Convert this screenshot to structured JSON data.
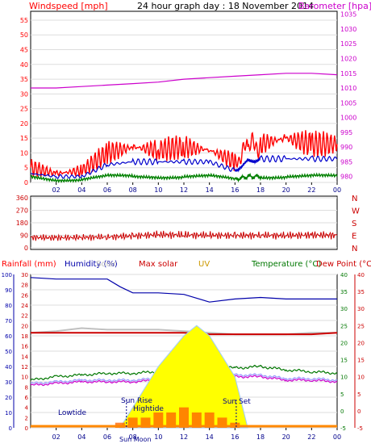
{
  "colors": {
    "wind": "#ff0000",
    "wind_avg": "#0000cc",
    "wind_low": "#008000",
    "baro": "#cc00cc",
    "direction": "#cc0000",
    "humidity": "#0000aa",
    "rain": "#ff0000",
    "solar": "#c0c0c0",
    "max_solar": "#cc0000",
    "uv": "#cc9900",
    "temperature": "#007700",
    "dewpoint": "#cc0000",
    "sun_fill": "#ffff00",
    "frame": "#000000",
    "grid": "#dddddd"
  },
  "titles": {
    "windspeed": "Windspeed [mph]",
    "graph_day": "24 hour graph day : 18 November 2014",
    "barometer": "Barometer [hpa]",
    "rainfall": "Rainfall (mm)",
    "humidity": "Humidity (%)",
    "solar": "Solar",
    "max_solar": "Max solar",
    "uv": "UV",
    "temperature": "Temperature (°C)",
    "dewpoint": "Dew Point (°C)"
  },
  "annotations": {
    "lowtide": "Lowtide",
    "sunrise": "Sun Rise",
    "hightide": "Hightide",
    "sunset": "Sun Set",
    "bottom_ticks_extra": "Sun Moon"
  },
  "chart_data": [
    {
      "type": "line",
      "x_ticks": [
        "02",
        "04",
        "06",
        "08",
        "10",
        "12",
        "14",
        "16",
        "18",
        "20",
        "22",
        "00"
      ],
      "y_left_ticks": [
        0,
        5,
        10,
        15,
        20,
        25,
        30,
        35,
        40,
        45,
        50,
        55
      ],
      "y_right_ticks": [
        980,
        985,
        990,
        995,
        1000,
        1005,
        1010,
        1015,
        1020,
        1025,
        1030,
        1035
      ],
      "ylim_left": [
        0,
        58
      ],
      "ylim_right": [
        978,
        1036
      ],
      "series": [
        {
          "key": "wind",
          "x": [
            0,
            2,
            4,
            6,
            8,
            10,
            12,
            14,
            16,
            17,
            18,
            20,
            22,
            24
          ],
          "values": [
            5,
            3,
            4,
            10,
            12,
            11,
            12,
            11,
            7,
            12,
            13,
            15,
            13,
            13
          ]
        },
        {
          "key": "wind_avg",
          "x": [
            0,
            2,
            4,
            6,
            8,
            10,
            12,
            14,
            16,
            17,
            18,
            20,
            22,
            24
          ],
          "values": [
            3,
            2,
            2,
            6,
            7,
            7,
            7,
            7,
            4,
            7,
            8,
            8,
            8,
            8
          ]
        },
        {
          "key": "wind_low",
          "x": [
            0,
            2,
            4,
            6,
            8,
            10,
            12,
            14,
            16,
            17,
            18,
            20,
            22,
            24
          ],
          "values": [
            2,
            1,
            1,
            2,
            2,
            2,
            2,
            2,
            1,
            2,
            2,
            2,
            2,
            2
          ]
        },
        {
          "key": "baro",
          "x": [
            0,
            2,
            4,
            6,
            8,
            10,
            12,
            14,
            16,
            18,
            20,
            22,
            24
          ],
          "values": [
            1010,
            1010,
            1010.5,
            1011,
            1011.5,
            1012,
            1013,
            1013.5,
            1014,
            1014.5,
            1015,
            1015,
            1014.5
          ]
        }
      ]
    },
    {
      "type": "line",
      "x_ticks": [
        "02",
        "04",
        "06",
        "08",
        "10",
        "12",
        "14",
        "16",
        "18",
        "20",
        "22",
        "00"
      ],
      "y_left_ticks": [
        0,
        90,
        180,
        270,
        360
      ],
      "y_right_ticks": [
        "N",
        "W",
        "S",
        "E",
        "N"
      ],
      "ylim": [
        0,
        380
      ],
      "series": [
        {
          "key": "direction",
          "x": [
            0,
            2,
            4,
            6,
            8,
            10,
            12,
            14,
            16,
            18,
            20,
            22,
            24
          ],
          "values": [
            75,
            72,
            75,
            78,
            85,
            95,
            92,
            90,
            88,
            90,
            88,
            92,
            90
          ]
        }
      ]
    },
    {
      "type": "line",
      "x_ticks": [
        "02",
        "04",
        "06",
        "08",
        "10",
        "12",
        "14",
        "16",
        "18",
        "20",
        "22",
        "00"
      ],
      "y_far_left_ticks": [
        0,
        10,
        20,
        30,
        40,
        50,
        60,
        70,
        80,
        90,
        100
      ],
      "y_left_ticks": [
        0,
        2,
        4,
        6,
        8,
        10,
        12,
        14,
        16,
        18,
        20,
        22,
        24,
        26,
        28,
        30
      ],
      "y_right_ticks": [
        -5,
        0,
        5,
        10,
        15,
        20,
        25,
        30,
        35,
        40
      ],
      "y_far_right_ticks": [
        -5,
        0,
        5,
        10,
        15,
        20,
        25,
        30,
        35,
        40
      ],
      "series": [
        {
          "key": "humidity",
          "x": [
            0,
            2,
            4,
            6,
            7,
            8,
            10,
            12,
            14,
            16,
            18,
            20,
            22,
            24
          ],
          "values": [
            98,
            97,
            97,
            97,
            92,
            88,
            88,
            87,
            82,
            84,
            85,
            84,
            84,
            84
          ]
        },
        {
          "key": "solar",
          "x": [
            0,
            2,
            4,
            6,
            8,
            10,
            12,
            14,
            16,
            18,
            20,
            22,
            24
          ],
          "values": [
            62,
            63,
            65,
            64,
            64,
            64,
            63,
            62,
            61,
            61,
            61,
            62,
            62
          ]
        },
        {
          "key": "max_solar",
          "x": [
            0,
            2,
            4,
            6,
            8,
            10,
            12,
            14,
            16,
            18,
            20,
            22,
            24
          ],
          "values": [
            62,
            62,
            62,
            62,
            62,
            62,
            62,
            61,
            61,
            61,
            61,
            61,
            62
          ]
        },
        {
          "key": "temperature",
          "x": [
            0,
            2,
            4,
            6,
            8,
            10,
            12,
            14,
            16,
            18,
            20,
            22,
            24
          ],
          "values": [
            9,
            10,
            10.5,
            11,
            11,
            11.5,
            12.5,
            13,
            12.5,
            13,
            12,
            11.5,
            11
          ]
        },
        {
          "key": "dewpoint",
          "x": [
            0,
            2,
            4,
            6,
            8,
            10,
            12,
            14,
            16,
            18,
            20,
            22,
            24
          ],
          "values": [
            8,
            8.5,
            9,
            9,
            9,
            9.5,
            10,
            10.5,
            10.5,
            10.5,
            9.5,
            9.5,
            9
          ]
        },
        {
          "key": "dew2",
          "x": [
            0,
            2,
            4,
            6,
            8,
            10,
            12,
            14,
            16,
            18,
            20,
            22,
            24
          ],
          "values": [
            7.5,
            8,
            8.5,
            8.5,
            8.5,
            9,
            9.5,
            10,
            10,
            10,
            9,
            9,
            8.5
          ]
        },
        {
          "key": "solar_curve",
          "x": [
            7,
            8,
            10,
            12,
            13,
            14,
            16,
            17
          ],
          "values": [
            0,
            4,
            12,
            18,
            20,
            18,
            10,
            0
          ]
        },
        {
          "key": "rain_bars",
          "x": [
            7,
            8,
            9,
            10,
            11,
            12,
            13,
            14,
            15,
            16
          ],
          "values": [
            1,
            2,
            2,
            3,
            3,
            4,
            3,
            3,
            2,
            1
          ]
        }
      ]
    }
  ]
}
